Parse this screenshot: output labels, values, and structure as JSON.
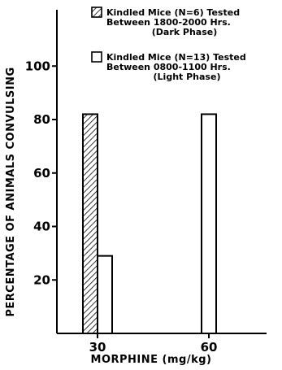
{
  "chart_data": {
    "type": "bar",
    "categories": [
      "30",
      "60"
    ],
    "series": [
      {
        "name_lines": [
          "Kindled Mice  (N=6) Tested",
          "Between 1800-2000 Hrs.",
          "(Dark Phase)"
        ],
        "pattern": "diagonal-hatch",
        "values": [
          82,
          null
        ]
      },
      {
        "name_lines": [
          "Kindled Mice (N=13) Tested",
          "Between 0800-1100 Hrs.",
          "(Light Phase)"
        ],
        "pattern": "open",
        "values": [
          29,
          82
        ]
      }
    ],
    "xlabel": "MORPHINE (mg/kg)",
    "ylabel": "PERCENTAGE OF ANIMALS CONVULSING",
    "yticks": [
      20,
      40,
      60,
      80,
      100
    ],
    "ylim": [
      0,
      120
    ],
    "legend_position": "top-right",
    "grid": false
  }
}
